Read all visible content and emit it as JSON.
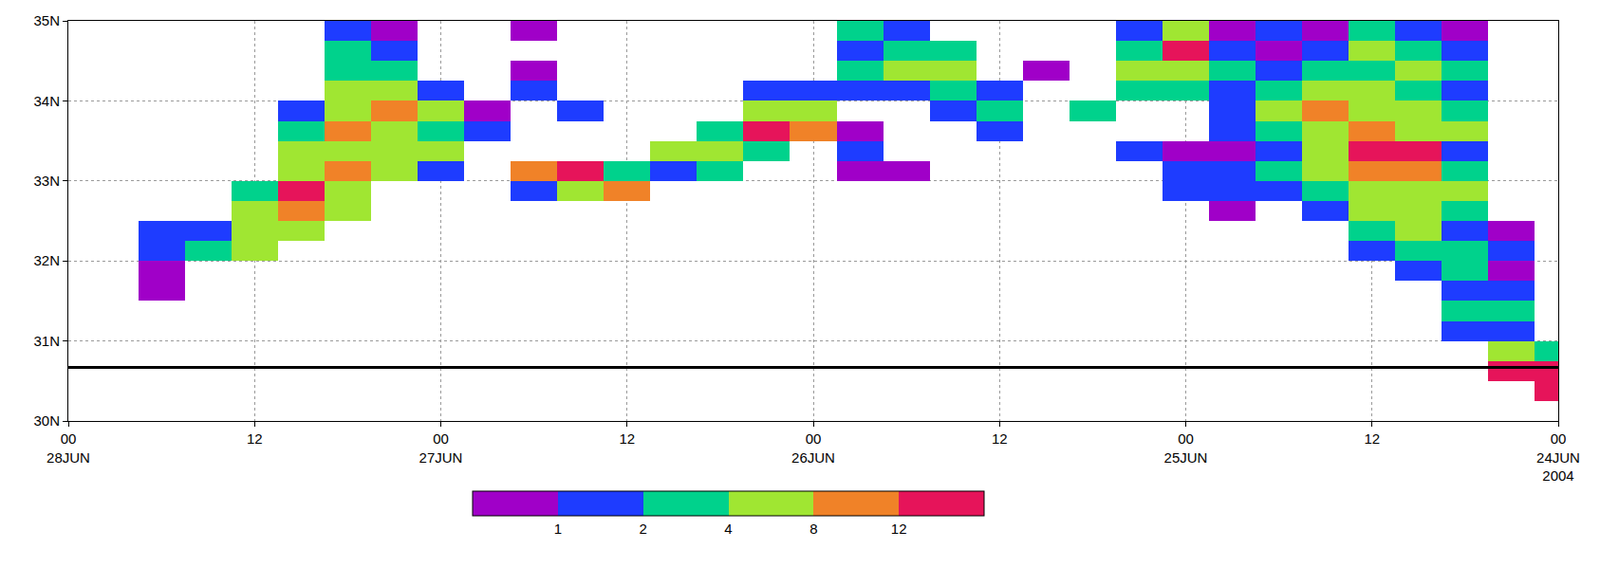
{
  "chart_data": {
    "type": "heatmap",
    "x": [
      "2004-06-24 00:00",
      "2004-06-24 03:00",
      "2004-06-24 06:00",
      "2004-06-24 09:00",
      "2004-06-24 12:00",
      "2004-06-24 15:00",
      "2004-06-24 18:00",
      "2004-06-24 21:00",
      "2004-06-25 00:00",
      "2004-06-25 03:00",
      "2004-06-25 06:00",
      "2004-06-25 09:00",
      "2004-06-25 12:00",
      "2004-06-25 15:00",
      "2004-06-25 18:00",
      "2004-06-25 21:00",
      "2004-06-26 00:00",
      "2004-06-26 03:00",
      "2004-06-26 06:00",
      "2004-06-26 09:00",
      "2004-06-26 12:00",
      "2004-06-26 15:00",
      "2004-06-26 18:00",
      "2004-06-26 21:00",
      "2004-06-27 00:00",
      "2004-06-27 03:00",
      "2004-06-27 06:00",
      "2004-06-27 09:00",
      "2004-06-27 12:00",
      "2004-06-27 15:00",
      "2004-06-27 18:00",
      "2004-06-27 21:00",
      "2004-06-28 00:00"
    ],
    "y": [
      30.125,
      30.375,
      30.625,
      30.875,
      31.125,
      31.375,
      31.625,
      31.875,
      32.125,
      32.375,
      32.625,
      32.875,
      33.125,
      33.375,
      33.625,
      33.875,
      34.125,
      34.375,
      34.625,
      34.875
    ],
    "z": [
      [
        null,
        null,
        null,
        null,
        null,
        null,
        null,
        null,
        null,
        null,
        null,
        null,
        null,
        null,
        null,
        null,
        null,
        null,
        null,
        null,
        null,
        null,
        null,
        null,
        null,
        null,
        null,
        null,
        null,
        null,
        null,
        null,
        null
      ],
      [
        5.5,
        null,
        null,
        null,
        null,
        null,
        null,
        null,
        null,
        null,
        null,
        null,
        null,
        null,
        null,
        null,
        null,
        null,
        null,
        null,
        null,
        null,
        null,
        null,
        null,
        null,
        null,
        null,
        null,
        null,
        null,
        null,
        null
      ],
      [
        5.5,
        5.5,
        null,
        null,
        null,
        null,
        null,
        null,
        null,
        null,
        null,
        null,
        null,
        null,
        null,
        null,
        null,
        null,
        null,
        null,
        null,
        null,
        null,
        null,
        null,
        null,
        null,
        null,
        null,
        null,
        null,
        null,
        null
      ],
      [
        2.5,
        3.5,
        null,
        null,
        null,
        null,
        null,
        null,
        null,
        null,
        null,
        null,
        null,
        null,
        null,
        null,
        null,
        null,
        null,
        null,
        null,
        null,
        null,
        null,
        null,
        null,
        null,
        null,
        null,
        null,
        null,
        null,
        null
      ],
      [
        null,
        1.5,
        1.5,
        null,
        null,
        null,
        null,
        null,
        null,
        null,
        null,
        null,
        null,
        null,
        null,
        null,
        null,
        null,
        null,
        null,
        null,
        null,
        null,
        null,
        null,
        null,
        null,
        null,
        null,
        null,
        null,
        null,
        null
      ],
      [
        null,
        2.5,
        2.5,
        null,
        null,
        null,
        null,
        null,
        null,
        null,
        null,
        null,
        null,
        null,
        null,
        null,
        null,
        null,
        null,
        null,
        null,
        null,
        null,
        null,
        null,
        null,
        null,
        null,
        null,
        null,
        null,
        null,
        null
      ],
      [
        null,
        1.5,
        1.5,
        null,
        null,
        null,
        null,
        null,
        null,
        null,
        null,
        null,
        null,
        null,
        null,
        null,
        null,
        null,
        null,
        null,
        null,
        null,
        null,
        null,
        null,
        null,
        null,
        null,
        null,
        null,
        0.5,
        null,
        null
      ],
      [
        null,
        0.5,
        2.5,
        1.5,
        null,
        null,
        null,
        null,
        null,
        null,
        null,
        null,
        null,
        null,
        null,
        null,
        null,
        null,
        null,
        null,
        null,
        null,
        null,
        null,
        null,
        null,
        null,
        null,
        null,
        null,
        0.5,
        null,
        null
      ],
      [
        null,
        1.5,
        2.5,
        2.5,
        1.5,
        null,
        null,
        null,
        null,
        null,
        null,
        null,
        null,
        null,
        null,
        null,
        null,
        null,
        null,
        null,
        null,
        null,
        null,
        null,
        null,
        null,
        null,
        null,
        3.5,
        2.5,
        1.5,
        null,
        null
      ],
      [
        null,
        0.5,
        1.5,
        3.5,
        2.5,
        null,
        null,
        null,
        null,
        null,
        null,
        null,
        null,
        null,
        null,
        null,
        null,
        null,
        null,
        null,
        null,
        null,
        null,
        null,
        null,
        null,
        null,
        3.5,
        3.5,
        1.5,
        1.5,
        null,
        null
      ],
      [
        null,
        null,
        2.5,
        3.5,
        3.5,
        1.5,
        null,
        0.5,
        null,
        null,
        null,
        null,
        null,
        null,
        null,
        null,
        null,
        null,
        null,
        null,
        null,
        null,
        null,
        null,
        null,
        null,
        3.5,
        4.5,
        3.5,
        null,
        null,
        null,
        null
      ],
      [
        null,
        null,
        3.5,
        3.5,
        3.5,
        2.5,
        1.5,
        1.5,
        1.5,
        null,
        null,
        null,
        null,
        null,
        null,
        null,
        null,
        null,
        null,
        null,
        4.5,
        3.5,
        1.5,
        null,
        null,
        null,
        3.5,
        5.5,
        2.5,
        null,
        null,
        null,
        null
      ],
      [
        null,
        null,
        2.5,
        4.5,
        4.5,
        3.5,
        2.5,
        1.5,
        1.5,
        null,
        null,
        null,
        null,
        null,
        0.5,
        0.5,
        null,
        null,
        2.5,
        1.5,
        2.5,
        5.5,
        4.5,
        null,
        1.5,
        3.5,
        4.5,
        3.5,
        null,
        null,
        null,
        null,
        null
      ],
      [
        null,
        null,
        1.5,
        5.5,
        5.5,
        3.5,
        1.5,
        0.5,
        0.5,
        1.5,
        null,
        null,
        null,
        null,
        null,
        1.5,
        null,
        2.5,
        3.5,
        3.5,
        null,
        null,
        null,
        null,
        3.5,
        3.5,
        3.5,
        3.5,
        null,
        null,
        null,
        null,
        null
      ],
      [
        null,
        null,
        3.5,
        3.5,
        4.5,
        3.5,
        2.5,
        1.5,
        null,
        null,
        null,
        null,
        1.5,
        null,
        null,
        0.5,
        4.5,
        5.5,
        2.5,
        null,
        null,
        null,
        null,
        1.5,
        2.5,
        3.5,
        4.5,
        2.5,
        null,
        null,
        null,
        null,
        null
      ],
      [
        null,
        null,
        2.5,
        3.5,
        3.5,
        4.5,
        3.5,
        1.5,
        null,
        null,
        2.5,
        null,
        2.5,
        1.5,
        null,
        null,
        3.5,
        3.5,
        null,
        null,
        null,
        1.5,
        null,
        0.5,
        3.5,
        4.5,
        3.5,
        1.5,
        null,
        null,
        null,
        null,
        null
      ],
      [
        null,
        null,
        1.5,
        2.5,
        3.5,
        3.5,
        2.5,
        1.5,
        2.5,
        2.5,
        null,
        null,
        1.5,
        2.5,
        1.5,
        1.5,
        1.5,
        1.5,
        null,
        null,
        null,
        null,
        1.5,
        null,
        1.5,
        3.5,
        3.5,
        null,
        null,
        null,
        null,
        null,
        null
      ],
      [
        null,
        null,
        2.5,
        3.5,
        2.5,
        2.5,
        1.5,
        2.5,
        3.5,
        3.5,
        null,
        0.5,
        null,
        3.5,
        3.5,
        2.5,
        null,
        null,
        null,
        null,
        null,
        null,
        0.5,
        null,
        null,
        2.5,
        2.5,
        null,
        null,
        null,
        null,
        null,
        null
      ],
      [
        null,
        null,
        1.5,
        2.5,
        3.5,
        1.5,
        0.5,
        1.5,
        5.5,
        2.5,
        null,
        null,
        null,
        2.5,
        2.5,
        1.5,
        null,
        null,
        null,
        null,
        null,
        null,
        null,
        null,
        null,
        1.5,
        2.5,
        null,
        null,
        null,
        null,
        null,
        null
      ],
      [
        null,
        null,
        0.5,
        1.5,
        2.5,
        0.5,
        1.5,
        0.5,
        3.5,
        1.5,
        null,
        null,
        null,
        null,
        1.5,
        2.5,
        null,
        null,
        null,
        null,
        null,
        null,
        0.5,
        null,
        null,
        0.5,
        1.5,
        null,
        null,
        null,
        null,
        null,
        null
      ]
    ],
    "xlim": [
      "2004-06-28 00:00",
      "2004-06-24 00:00"
    ],
    "xticks": [
      {
        "value": "2004-06-28 00:00",
        "label": "00\n28JUN"
      },
      {
        "value": "2004-06-27 12:00",
        "label": "12"
      },
      {
        "value": "2004-06-27 00:00",
        "label": "00\n27JUN"
      },
      {
        "value": "2004-06-26 12:00",
        "label": "12"
      },
      {
        "value": "2004-06-26 00:00",
        "label": "00\n26JUN"
      },
      {
        "value": "2004-06-25 12:00",
        "label": "12"
      },
      {
        "value": "2004-06-25 00:00",
        "label": "00\n25JUN"
      },
      {
        "value": "2004-06-24 12:00",
        "label": "12"
      },
      {
        "value": "2004-06-24 00:00",
        "label": "00\n24JUN\n2004"
      }
    ],
    "ylim": [
      30,
      35
    ],
    "yticks": [
      {
        "value": 30,
        "label": "30N"
      },
      {
        "value": 31,
        "label": "31N"
      },
      {
        "value": 32,
        "label": "32N"
      },
      {
        "value": 33,
        "label": "33N"
      },
      {
        "value": 34,
        "label": "34N"
      },
      {
        "value": 35,
        "label": "35N"
      }
    ],
    "grid": true,
    "colors": [
      "#a000c8",
      "#1e3cff",
      "#00d28c",
      "#a0e632",
      "#f08228",
      "#e6145a"
    ],
    "colorbar_range": [
      0,
      6
    ],
    "colorbar_ticks": [
      1,
      2,
      {
        "value": 3,
        "label": "4"
      },
      {
        "value": 4,
        "label": "8"
      },
      {
        "value": 5,
        "label": "12"
      }
    ],
    "reference_line": 30.67
  }
}
